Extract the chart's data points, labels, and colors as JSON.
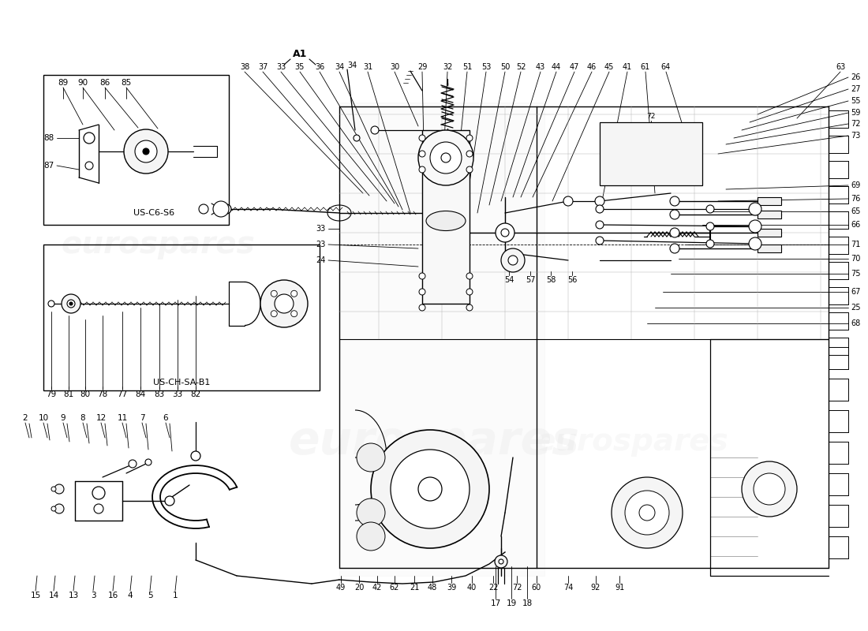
{
  "bg_color": "#ffffff",
  "line_color": "#000000",
  "watermark": "eurospares",
  "watermark_color": "#c8c8c8",
  "fig_width": 11.0,
  "fig_height": 8.0,
  "dpi": 100,
  "box1_label": "US-C6-S6",
  "box2_label": "US-CH-SA-B1",
  "label_A1": "A1",
  "top_nums_left": [
    "38",
    "37",
    "33",
    "35",
    "36",
    "34",
    "31",
    "30",
    "29"
  ],
  "top_nums_right": [
    "32",
    "51",
    "53",
    "50",
    "52",
    "43",
    "44",
    "47",
    "46",
    "45",
    "41",
    "61",
    "64",
    "63"
  ],
  "right_nums": [
    "26",
    "27",
    "55",
    "59",
    "72",
    "73",
    "69",
    "76",
    "65",
    "66",
    "71",
    "70",
    "75",
    "67",
    "25",
    "68"
  ],
  "bottom_nums": [
    "49",
    "20",
    "42",
    "62",
    "21",
    "48",
    "39",
    "40",
    "22"
  ],
  "bottom_nums2": [
    "72",
    "60",
    "74",
    "92",
    "91"
  ],
  "nums_17_19_18": [
    "17",
    "19",
    "18"
  ],
  "box1_top_nums": [
    "89",
    "90",
    "86",
    "85"
  ],
  "box1_left_nums": [
    "88",
    "87"
  ],
  "box2_bottom_nums": [
    "79",
    "81",
    "80",
    "78",
    "77",
    "84",
    "83",
    "33",
    "82"
  ],
  "lower_top_nums": [
    "2",
    "10",
    "9",
    "8",
    "12",
    "11",
    "7",
    "6"
  ],
  "lower_bot_nums": [
    "15",
    "14",
    "13",
    "3",
    "16",
    "4",
    "5",
    "1"
  ],
  "label_33": "33",
  "label_23": "23",
  "label_24": "24",
  "label_54": "54",
  "label_57": "57",
  "label_58": "58",
  "label_56": "56"
}
